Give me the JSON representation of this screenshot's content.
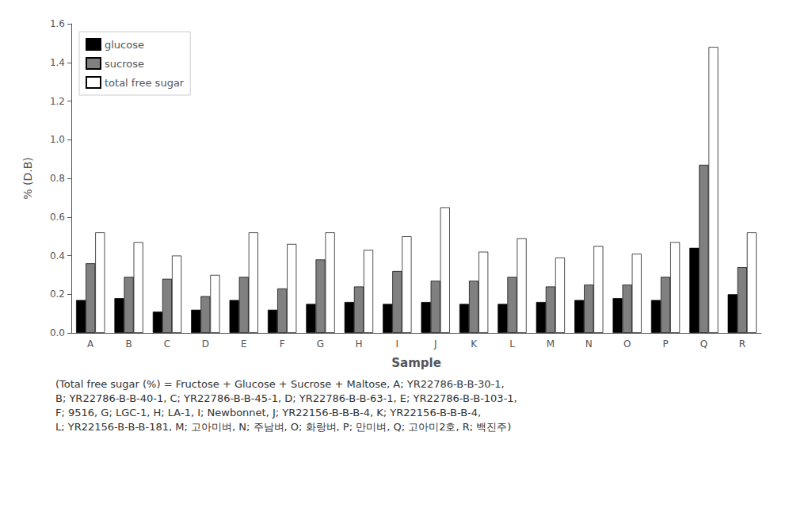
{
  "chart_data": {
    "type": "bar",
    "categories": [
      "A",
      "B",
      "C",
      "D",
      "E",
      "F",
      "G",
      "H",
      "I",
      "J",
      "K",
      "L",
      "M",
      "N",
      "O",
      "P",
      "Q",
      "R"
    ],
    "series": [
      {
        "name": "glucose",
        "color": "#000000",
        "values": [
          0.17,
          0.18,
          0.11,
          0.12,
          0.17,
          0.12,
          0.15,
          0.16,
          0.15,
          0.16,
          0.15,
          0.15,
          0.16,
          0.17,
          0.18,
          0.17,
          0.44,
          0.2
        ]
      },
      {
        "name": "sucrose",
        "color": "#808080",
        "values": [
          0.36,
          0.29,
          0.28,
          0.19,
          0.29,
          0.23,
          0.38,
          0.24,
          0.32,
          0.27,
          0.27,
          0.29,
          0.24,
          0.25,
          0.25,
          0.29,
          0.87,
          0.34
        ]
      },
      {
        "name": "total free sugar",
        "color": "#ffffff",
        "values": [
          0.52,
          0.47,
          0.4,
          0.3,
          0.52,
          0.46,
          0.52,
          0.43,
          0.5,
          0.65,
          0.42,
          0.49,
          0.39,
          0.45,
          0.41,
          0.47,
          1.48,
          0.52
        ]
      }
    ],
    "xlabel": "Sample",
    "ylabel": "% (D.B)",
    "ylim": [
      0.0,
      1.6
    ],
    "yticks": [
      {
        "value": 0,
        "label": "0.0"
      },
      0.2,
      0.4,
      0.6,
      0.8,
      {
        "value": 1,
        "label": "1.0"
      },
      1.2,
      1.4,
      1.6
    ],
    "grid": false,
    "legend": "upper left",
    "annotations": [
      "(Total free sugar (%) = Fructose + Glucose + Sucrose + Maltose, A; YR22786-B-B-30-1,",
      "B; YR22786-B-B-40-1, C; YR22786-B-B-45-1, D; YR22786-B-B-63-1, E; YR22786-B-B-103-1,",
      "F; 9516, G; LGC-1, H; LA-1, I; Newbonnet, J; YR22156-B-B-B-4, K; YR22156-B-B-B-4,",
      "L; YR22156-B-B-B-181, M; 고아미벼, N; 주남벼, O; 화랑벼, P; 만미벼, Q; 고아미2호, R; 백진주)"
    ]
  }
}
